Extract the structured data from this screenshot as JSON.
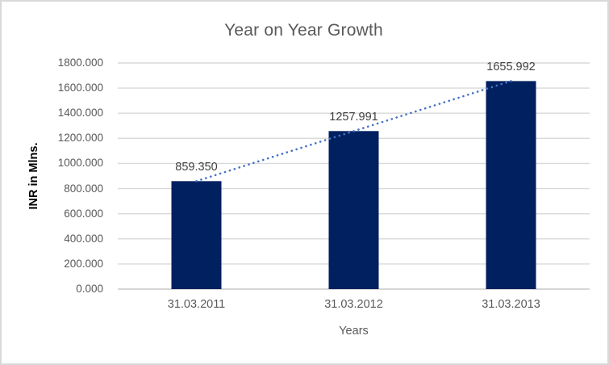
{
  "chart_data": {
    "type": "bar",
    "title": "Year on Year Growth",
    "xlabel": "Years",
    "ylabel": "INR in Mlns.",
    "categories": [
      "31.03.2011",
      "31.03.2012",
      "31.03.2013"
    ],
    "values": [
      859.35,
      1257.991,
      1655.992
    ],
    "data_labels": [
      "859.350",
      "1257.991",
      "1655.992"
    ],
    "ylim": [
      0,
      1800
    ],
    "ytick_step": 200,
    "ytick_labels": [
      "0.000",
      "200.000",
      "400.000",
      "600.000",
      "800.000",
      "1000.000",
      "1200.000",
      "1400.000",
      "1600.000",
      "1800.000"
    ],
    "grid": true,
    "legend": "none",
    "trendline": true,
    "colors": {
      "bar": "#002060",
      "trendline": "#4472C4",
      "gridline": "#d9d9d9",
      "baseline": "#c9c9c9",
      "title": "#595959",
      "tick_label": "#595959",
      "data_label": "#404040",
      "axis_title": "#000000",
      "frame_border": "#d9d9d9"
    }
  }
}
